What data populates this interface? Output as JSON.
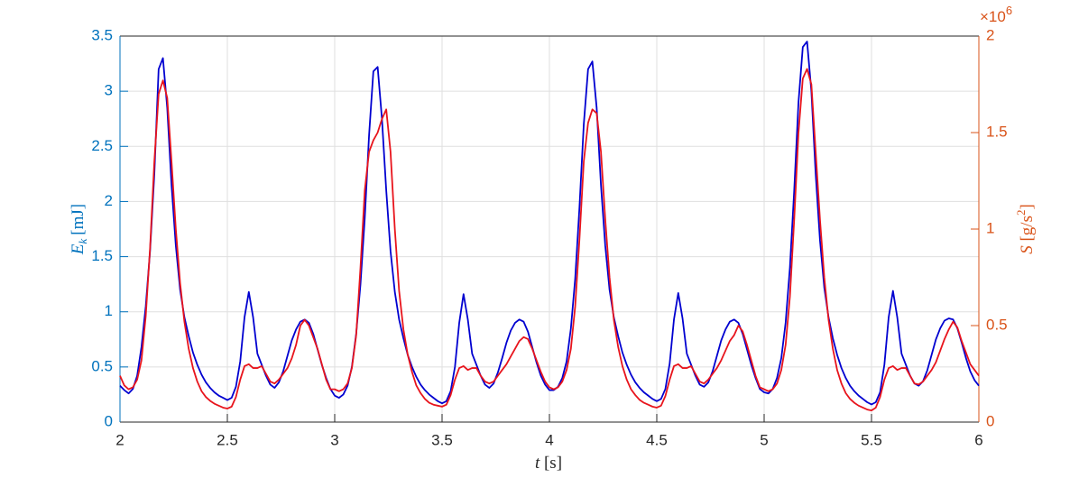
{
  "chart_data": {
    "type": "line",
    "xlabel": {
      "symbol": "t",
      "unit": "[s]"
    },
    "ylabel": {
      "symbol": "E",
      "subscript": "k",
      "unit": "[mJ]"
    },
    "y2label": {
      "symbol": "S",
      "unit": "[g/s",
      "unit_sup": "2",
      "unit_end": "]"
    },
    "y2_multiplier": {
      "base": "×10",
      "exponent": "6"
    },
    "xlim": [
      2,
      6
    ],
    "xticks": [
      2,
      2.5,
      3,
      3.5,
      4,
      4.5,
      5,
      5.5,
      6
    ],
    "ylim": [
      0,
      3.5
    ],
    "yticks": [
      0,
      0.5,
      1,
      1.5,
      2,
      2.5,
      3,
      3.5
    ],
    "y2lim": [
      0,
      2000000
    ],
    "y2ticks": [
      {
        "value": 0,
        "label": "0"
      },
      {
        "value": 500000,
        "label": "0.5"
      },
      {
        "value": 1000000,
        "label": "1"
      },
      {
        "value": 1500000,
        "label": "1.5"
      },
      {
        "value": 2000000,
        "label": "2"
      }
    ],
    "grid": true,
    "y_axis_color": "#0072bd",
    "y2_axis_color": "#d95319",
    "x": [
      2,
      2.02,
      2.04,
      2.06,
      2.08,
      2.1,
      2.12,
      2.14,
      2.16,
      2.18,
      2.2,
      2.22,
      2.24,
      2.26,
      2.28,
      2.3,
      2.32,
      2.34,
      2.36,
      2.38,
      2.4,
      2.42,
      2.44,
      2.46,
      2.48,
      2.5,
      2.52,
      2.54,
      2.56,
      2.58,
      2.6,
      2.62,
      2.64,
      2.66,
      2.68,
      2.7,
      2.72,
      2.74,
      2.76,
      2.78,
      2.8,
      2.82,
      2.84,
      2.86,
      2.88,
      2.9,
      2.92,
      2.94,
      2.96,
      2.98,
      3,
      3.02,
      3.04,
      3.06,
      3.08,
      3.1,
      3.12,
      3.14,
      3.16,
      3.18,
      3.2,
      3.22,
      3.24,
      3.26,
      3.28,
      3.3,
      3.32,
      3.34,
      3.36,
      3.38,
      3.4,
      3.42,
      3.44,
      3.46,
      3.48,
      3.5,
      3.52,
      3.54,
      3.56,
      3.58,
      3.6,
      3.62,
      3.64,
      3.66,
      3.68,
      3.7,
      3.72,
      3.74,
      3.76,
      3.78,
      3.8,
      3.82,
      3.84,
      3.86,
      3.88,
      3.9,
      3.92,
      3.94,
      3.96,
      3.98,
      4,
      4.02,
      4.04,
      4.06,
      4.08,
      4.1,
      4.12,
      4.14,
      4.16,
      4.18,
      4.2,
      4.22,
      4.24,
      4.26,
      4.28,
      4.3,
      4.32,
      4.34,
      4.36,
      4.38,
      4.4,
      4.42,
      4.44,
      4.46,
      4.48,
      4.5,
      4.52,
      4.54,
      4.56,
      4.58,
      4.6,
      4.62,
      4.64,
      4.66,
      4.68,
      4.7,
      4.72,
      4.74,
      4.76,
      4.78,
      4.8,
      4.82,
      4.84,
      4.86,
      4.88,
      4.9,
      4.92,
      4.94,
      4.96,
      4.98,
      5,
      5.02,
      5.04,
      5.06,
      5.08,
      5.1,
      5.12,
      5.14,
      5.16,
      5.18,
      5.2,
      5.22,
      5.24,
      5.26,
      5.28,
      5.3,
      5.32,
      5.34,
      5.36,
      5.38,
      5.4,
      5.42,
      5.44,
      5.46,
      5.48,
      5.5,
      5.52,
      5.54,
      5.56,
      5.58,
      5.6,
      5.62,
      5.64,
      5.66,
      5.68,
      5.7,
      5.72,
      5.74,
      5.76,
      5.78,
      5.8,
      5.82,
      5.84,
      5.86,
      5.88,
      5.9,
      5.92,
      5.94,
      5.96,
      5.98,
      6
    ],
    "series": [
      {
        "color": "#0000d0",
        "axis": "y",
        "values": [
          0.33,
          0.29,
          0.26,
          0.3,
          0.42,
          0.68,
          1.05,
          1.55,
          2.25,
          3.2,
          3.3,
          2.85,
          2.15,
          1.6,
          1.2,
          0.95,
          0.78,
          0.63,
          0.52,
          0.43,
          0.36,
          0.31,
          0.27,
          0.24,
          0.22,
          0.2,
          0.22,
          0.32,
          0.55,
          0.95,
          1.18,
          0.95,
          0.62,
          0.52,
          0.42,
          0.34,
          0.31,
          0.36,
          0.46,
          0.6,
          0.74,
          0.84,
          0.91,
          0.93,
          0.9,
          0.8,
          0.66,
          0.52,
          0.4,
          0.3,
          0.24,
          0.22,
          0.25,
          0.33,
          0.5,
          0.8,
          1.25,
          1.85,
          2.6,
          3.18,
          3.22,
          2.75,
          2.1,
          1.55,
          1.18,
          0.93,
          0.76,
          0.61,
          0.5,
          0.41,
          0.34,
          0.29,
          0.25,
          0.22,
          0.19,
          0.17,
          0.19,
          0.28,
          0.5,
          0.9,
          1.16,
          0.93,
          0.62,
          0.52,
          0.42,
          0.34,
          0.31,
          0.35,
          0.45,
          0.58,
          0.72,
          0.83,
          0.9,
          0.93,
          0.91,
          0.82,
          0.68,
          0.54,
          0.42,
          0.34,
          0.29,
          0.29,
          0.32,
          0.4,
          0.55,
          0.85,
          1.3,
          1.95,
          2.7,
          3.2,
          3.27,
          2.85,
          2.15,
          1.6,
          1.2,
          0.95,
          0.78,
          0.63,
          0.52,
          0.43,
          0.36,
          0.31,
          0.27,
          0.24,
          0.21,
          0.19,
          0.21,
          0.3,
          0.53,
          0.93,
          1.17,
          0.94,
          0.62,
          0.52,
          0.42,
          0.34,
          0.32,
          0.36,
          0.46,
          0.6,
          0.74,
          0.84,
          0.91,
          0.93,
          0.9,
          0.8,
          0.66,
          0.52,
          0.4,
          0.3,
          0.27,
          0.26,
          0.3,
          0.4,
          0.58,
          0.9,
          1.4,
          2.1,
          2.9,
          3.4,
          3.45,
          3.0,
          2.25,
          1.65,
          1.22,
          0.95,
          0.76,
          0.61,
          0.49,
          0.4,
          0.33,
          0.28,
          0.24,
          0.21,
          0.18,
          0.16,
          0.18,
          0.27,
          0.52,
          0.95,
          1.19,
          0.95,
          0.62,
          0.52,
          0.42,
          0.35,
          0.33,
          0.37,
          0.47,
          0.61,
          0.75,
          0.85,
          0.92,
          0.94,
          0.93,
          0.85,
          0.72,
          0.58,
          0.46,
          0.38,
          0.33
        ]
      },
      {
        "color": "#e8141c",
        "axis": "y2",
        "values": [
          240000,
          190000,
          170000,
          180000,
          220000,
          320000,
          550000,
          900000,
          1350000,
          1700000,
          1770000,
          1680000,
          1350000,
          1000000,
          720000,
          520000,
          380000,
          280000,
          210000,
          160000,
          130000,
          110000,
          95000,
          85000,
          75000,
          70000,
          80000,
          130000,
          220000,
          290000,
          300000,
          280000,
          280000,
          290000,
          250000,
          210000,
          200000,
          220000,
          250000,
          280000,
          330000,
          400000,
          500000,
          530000,
          500000,
          440000,
          380000,
          300000,
          220000,
          170000,
          170000,
          160000,
          170000,
          200000,
          280000,
          450000,
          800000,
          1200000,
          1400000,
          1460000,
          1500000,
          1570000,
          1620000,
          1400000,
          1000000,
          680000,
          480000,
          350000,
          260000,
          190000,
          150000,
          120000,
          100000,
          90000,
          85000,
          80000,
          90000,
          140000,
          220000,
          280000,
          290000,
          270000,
          280000,
          280000,
          240000,
          210000,
          200000,
          210000,
          240000,
          270000,
          300000,
          340000,
          380000,
          420000,
          440000,
          430000,
          380000,
          320000,
          260000,
          210000,
          180000,
          170000,
          180000,
          210000,
          270000,
          380000,
          600000,
          950000,
          1350000,
          1550000,
          1620000,
          1600000,
          1400000,
          1050000,
          750000,
          530000,
          390000,
          290000,
          220000,
          170000,
          140000,
          115000,
          100000,
          90000,
          80000,
          75000,
          85000,
          135000,
          220000,
          290000,
          300000,
          280000,
          280000,
          290000,
          250000,
          210000,
          200000,
          220000,
          250000,
          280000,
          320000,
          370000,
          420000,
          450000,
          500000,
          470000,
          400000,
          320000,
          240000,
          180000,
          170000,
          160000,
          170000,
          200000,
          270000,
          400000,
          650000,
          1050000,
          1500000,
          1780000,
          1830000,
          1750000,
          1400000,
          1050000,
          750000,
          530000,
          380000,
          270000,
          200000,
          150000,
          120000,
          100000,
          85000,
          75000,
          65000,
          60000,
          75000,
          130000,
          220000,
          280000,
          290000,
          270000,
          280000,
          280000,
          240000,
          200000,
          195000,
          210000,
          240000,
          270000,
          310000,
          370000,
          430000,
          480000,
          520000,
          490000,
          420000,
          360000,
          300000,
          270000,
          240000
        ]
      }
    ]
  }
}
